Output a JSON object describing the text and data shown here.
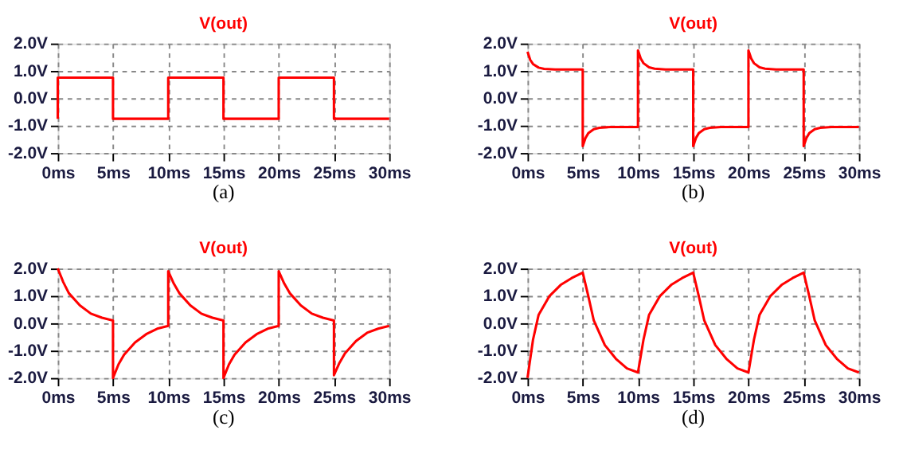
{
  "chart_data": [
    {
      "type": "line",
      "title": "V(out)",
      "annotations": [
        "(a)"
      ],
      "xlim": [
        0,
        30
      ],
      "ylim": [
        -2,
        2
      ],
      "grid": true,
      "xticks": [
        {
          "value": 0,
          "label": "0ms"
        },
        {
          "value": 5,
          "label": "5ms"
        },
        {
          "value": 10,
          "label": "10ms"
        },
        {
          "value": 15,
          "label": "15ms"
        },
        {
          "value": 20,
          "label": "20ms"
        },
        {
          "value": 25,
          "label": "25ms"
        },
        {
          "value": 30,
          "label": "30ms"
        }
      ],
      "yticks": [
        {
          "value": -2,
          "label": "-2.0V"
        },
        {
          "value": -1,
          "label": "-1.0V"
        },
        {
          "value": 0,
          "label": "0.0V"
        },
        {
          "value": 1,
          "label": "1.0V"
        },
        {
          "value": 2,
          "label": "2.0V"
        }
      ],
      "series": [
        {
          "color": "#ff0000",
          "x": [
            0,
            0,
            5,
            5,
            10,
            10,
            15,
            15,
            20,
            20,
            25,
            25,
            30
          ],
          "values": [
            -0.75,
            0.75,
            0.75,
            -0.75,
            -0.75,
            0.75,
            0.75,
            -0.75,
            -0.75,
            0.75,
            0.75,
            -0.75,
            -0.75
          ]
        }
      ]
    },
    {
      "type": "line",
      "title": "V(out)",
      "annotations": [
        "(b)"
      ],
      "xlim": [
        0,
        30
      ],
      "ylim": [
        -2,
        2
      ],
      "grid": true,
      "xticks": [
        {
          "value": 0,
          "label": "0ms"
        },
        {
          "value": 5,
          "label": "5ms"
        },
        {
          "value": 10,
          "label": "10ms"
        },
        {
          "value": 15,
          "label": "15ms"
        },
        {
          "value": 20,
          "label": "20ms"
        },
        {
          "value": 25,
          "label": "25ms"
        },
        {
          "value": 30,
          "label": "30ms"
        }
      ],
      "yticks": [
        {
          "value": -2,
          "label": "-2.0V"
        },
        {
          "value": -1,
          "label": "-1.0V"
        },
        {
          "value": 0,
          "label": "0.0V"
        },
        {
          "value": 1,
          "label": "1.0V"
        },
        {
          "value": 2,
          "label": "2.0V"
        }
      ],
      "series": [
        {
          "color": "#ff0000",
          "x": [
            0,
            0.25,
            0.5,
            1,
            1.5,
            2.5,
            5,
            5,
            5.25,
            5.5,
            6,
            6.5,
            7.5,
            10,
            10,
            10.25,
            10.5,
            11,
            11.5,
            12.5,
            15,
            15,
            15.25,
            15.5,
            16,
            16.5,
            17.5,
            20,
            20,
            20.25,
            20.5,
            21,
            21.5,
            22.5,
            25,
            25,
            25.25,
            25.5,
            26,
            26.5,
            27.5,
            30
          ],
          "values": [
            1.7,
            1.4,
            1.25,
            1.12,
            1.07,
            1.05,
            1.05,
            -1.75,
            -1.45,
            -1.28,
            -1.13,
            -1.08,
            -1.05,
            -1.05,
            1.75,
            1.45,
            1.28,
            1.13,
            1.08,
            1.05,
            1.05,
            -1.75,
            -1.45,
            -1.28,
            -1.13,
            -1.08,
            -1.05,
            -1.05,
            1.75,
            1.45,
            1.28,
            1.13,
            1.08,
            1.05,
            1.05,
            -1.75,
            -1.45,
            -1.28,
            -1.13,
            -1.08,
            -1.05,
            -1.05
          ]
        }
      ]
    },
    {
      "type": "line",
      "title": "V(out)",
      "annotations": [
        "(c)"
      ],
      "xlim": [
        0,
        30
      ],
      "ylim": [
        -2,
        2
      ],
      "grid": true,
      "xticks": [
        {
          "value": 0,
          "label": "0ms"
        },
        {
          "value": 5,
          "label": "5ms"
        },
        {
          "value": 10,
          "label": "10ms"
        },
        {
          "value": 15,
          "label": "15ms"
        },
        {
          "value": 20,
          "label": "20ms"
        },
        {
          "value": 25,
          "label": "25ms"
        },
        {
          "value": 30,
          "label": "30ms"
        }
      ],
      "yticks": [
        {
          "value": -2,
          "label": "-2.0V"
        },
        {
          "value": -1,
          "label": "-1.0V"
        },
        {
          "value": 0,
          "label": "0.0V"
        },
        {
          "value": 1,
          "label": "1.0V"
        },
        {
          "value": 2,
          "label": "2.0V"
        }
      ],
      "series": [
        {
          "color": "#ff0000",
          "x": [
            0,
            0.5,
            1,
            2,
            3,
            4,
            5,
            5,
            5.5,
            6,
            7,
            8,
            9,
            10,
            10,
            10.5,
            11,
            12,
            13,
            14,
            15,
            15,
            15.5,
            16,
            17,
            18,
            19,
            20,
            20,
            20.5,
            21,
            22,
            23,
            24,
            25,
            25,
            25.5,
            26,
            27,
            28,
            29,
            30
          ],
          "values": [
            2.0,
            1.5,
            1.1,
            0.65,
            0.35,
            0.2,
            0.1,
            -2.0,
            -1.5,
            -1.15,
            -0.7,
            -0.4,
            -0.2,
            -0.1,
            1.9,
            1.45,
            1.1,
            0.65,
            0.35,
            0.2,
            0.1,
            -2.0,
            -1.5,
            -1.15,
            -0.7,
            -0.4,
            -0.2,
            -0.1,
            1.9,
            1.45,
            1.1,
            0.65,
            0.35,
            0.2,
            0.1,
            -1.9,
            -1.45,
            -1.1,
            -0.65,
            -0.35,
            -0.2,
            -0.1
          ]
        }
      ]
    },
    {
      "type": "line",
      "title": "V(out)",
      "annotations": [
        "(d)"
      ],
      "xlim": [
        0,
        30
      ],
      "ylim": [
        -2,
        2
      ],
      "grid": true,
      "xticks": [
        {
          "value": 0,
          "label": "0ms"
        },
        {
          "value": 5,
          "label": "5ms"
        },
        {
          "value": 10,
          "label": "10ms"
        },
        {
          "value": 15,
          "label": "15ms"
        },
        {
          "value": 20,
          "label": "20ms"
        },
        {
          "value": 25,
          "label": "25ms"
        },
        {
          "value": 30,
          "label": "30ms"
        }
      ],
      "yticks": [
        {
          "value": -2,
          "label": "-2.0V"
        },
        {
          "value": -1,
          "label": "-1.0V"
        },
        {
          "value": 0,
          "label": "0.0V"
        },
        {
          "value": 1,
          "label": "1.0V"
        },
        {
          "value": 2,
          "label": "2.0V"
        }
      ],
      "series": [
        {
          "color": "#ff0000",
          "x": [
            0,
            0.5,
            1,
            2,
            3,
            4,
            5,
            5.5,
            6,
            7,
            8,
            9,
            10,
            10.5,
            11,
            12,
            13,
            14,
            15,
            15.5,
            16,
            17,
            18,
            19,
            20,
            20.5,
            21,
            22,
            23,
            24,
            25,
            25.5,
            26,
            27,
            28,
            29,
            30
          ],
          "values": [
            -2.0,
            -0.6,
            0.3,
            1.0,
            1.4,
            1.65,
            1.85,
            1.0,
            0.1,
            -0.8,
            -1.3,
            -1.65,
            -1.8,
            -0.6,
            0.3,
            1.0,
            1.4,
            1.65,
            1.85,
            1.0,
            0.1,
            -0.8,
            -1.3,
            -1.65,
            -1.8,
            -0.6,
            0.3,
            1.0,
            1.4,
            1.65,
            1.85,
            1.0,
            0.1,
            -0.8,
            -1.3,
            -1.65,
            -1.8
          ]
        }
      ]
    }
  ]
}
